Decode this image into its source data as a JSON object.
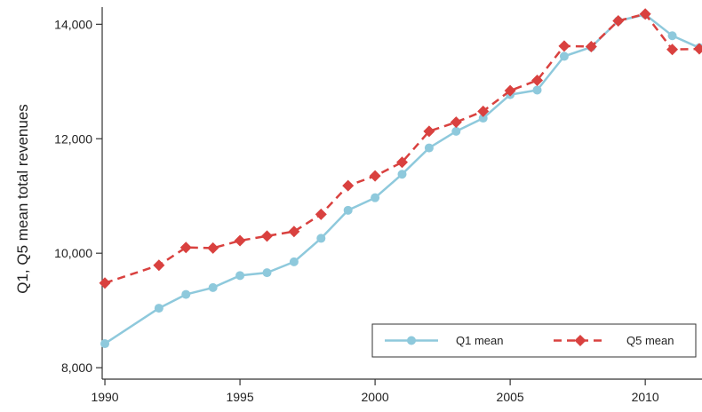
{
  "chart_data": {
    "type": "line",
    "xlabel": "",
    "ylabel": "Q1, Q5 mean total revenues",
    "xlim": [
      1989.9,
      2012.1
    ],
    "ylim": [
      7800,
      14300
    ],
    "x_ticks": [
      1990,
      1995,
      2000,
      2005,
      2010
    ],
    "x_tick_labels": [
      "1990",
      "1995",
      "2000",
      "2005",
      "2010"
    ],
    "y_ticks": [
      8000,
      10000,
      12000,
      14000
    ],
    "y_tick_labels": [
      "8,000",
      "10,000",
      "12,000",
      "14,000"
    ],
    "grid": false,
    "legend_position": "bottom-right",
    "series": [
      {
        "name": "Q1 mean",
        "color": "#8ec9dc",
        "marker": "circle",
        "line_style": "solid",
        "x": [
          1990,
          1992,
          1993,
          1994,
          1995,
          1996,
          1997,
          1998,
          1999,
          2000,
          2001,
          2002,
          2003,
          2004,
          2005,
          2006,
          2007,
          2008,
          2009,
          2010,
          2011,
          2012
        ],
        "y": [
          8420,
          9040,
          9280,
          9400,
          9610,
          9660,
          9850,
          10260,
          10750,
          10970,
          11380,
          11840,
          12130,
          12360,
          12770,
          12850,
          13440,
          13600,
          14060,
          14170,
          13800,
          13590
        ]
      },
      {
        "name": "Q5 mean",
        "color": "#d9413f",
        "marker": "diamond",
        "line_style": "dashed",
        "x": [
          1990,
          1992,
          1993,
          1994,
          1995,
          1996,
          1997,
          1998,
          1999,
          2000,
          2001,
          2002,
          2003,
          2004,
          2005,
          2006,
          2007,
          2008,
          2009,
          2010,
          2011,
          2012
        ],
        "y": [
          9480,
          9790,
          10100,
          10090,
          10220,
          10300,
          10380,
          10680,
          11180,
          11350,
          11590,
          12130,
          12290,
          12480,
          12840,
          13020,
          13620,
          13610,
          14060,
          14180,
          13560,
          13570
        ]
      }
    ]
  }
}
